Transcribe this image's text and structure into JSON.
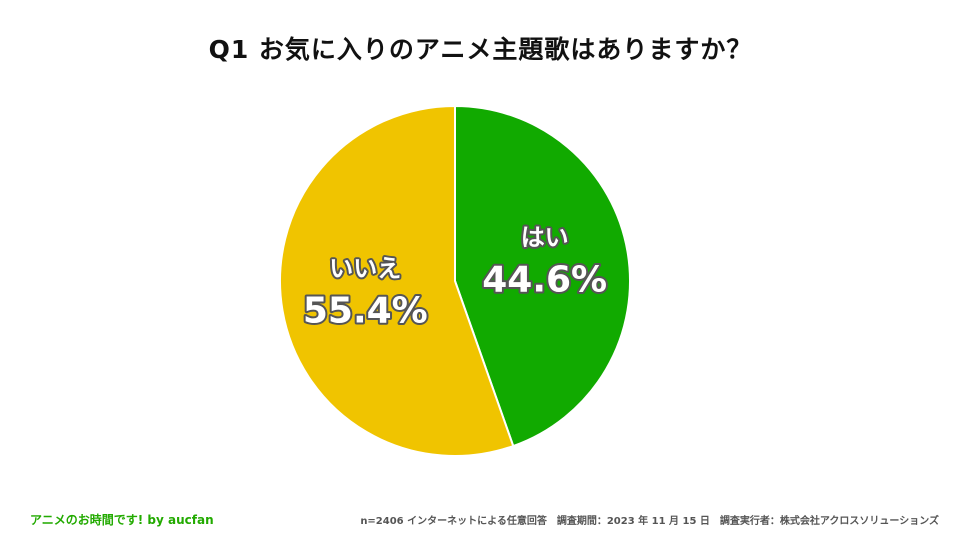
{
  "title": "Q1 お気に入りのアニメ主題歌はありますか？",
  "chart_data": {
    "type": "pie",
    "title": "Q1 お気に入りのアニメ主題歌はありますか？",
    "slices": [
      {
        "label": "はい",
        "value": 44.6,
        "value_label": "44.6%",
        "color": "#11aa00"
      },
      {
        "label": "いいえ",
        "value": 55.4,
        "value_label": "55.4%",
        "color": "#f0c400"
      }
    ],
    "start": "12 o'clock",
    "direction": "clockwise",
    "legend": "none"
  },
  "footer": {
    "brand": "アニメのお時間です! by aucfan",
    "survey_info": "n=2406 インターネットによる任意回答　調査期間：2023 年 11 月 15 日　調査実行者：株式会社アクロスソリューションズ"
  }
}
